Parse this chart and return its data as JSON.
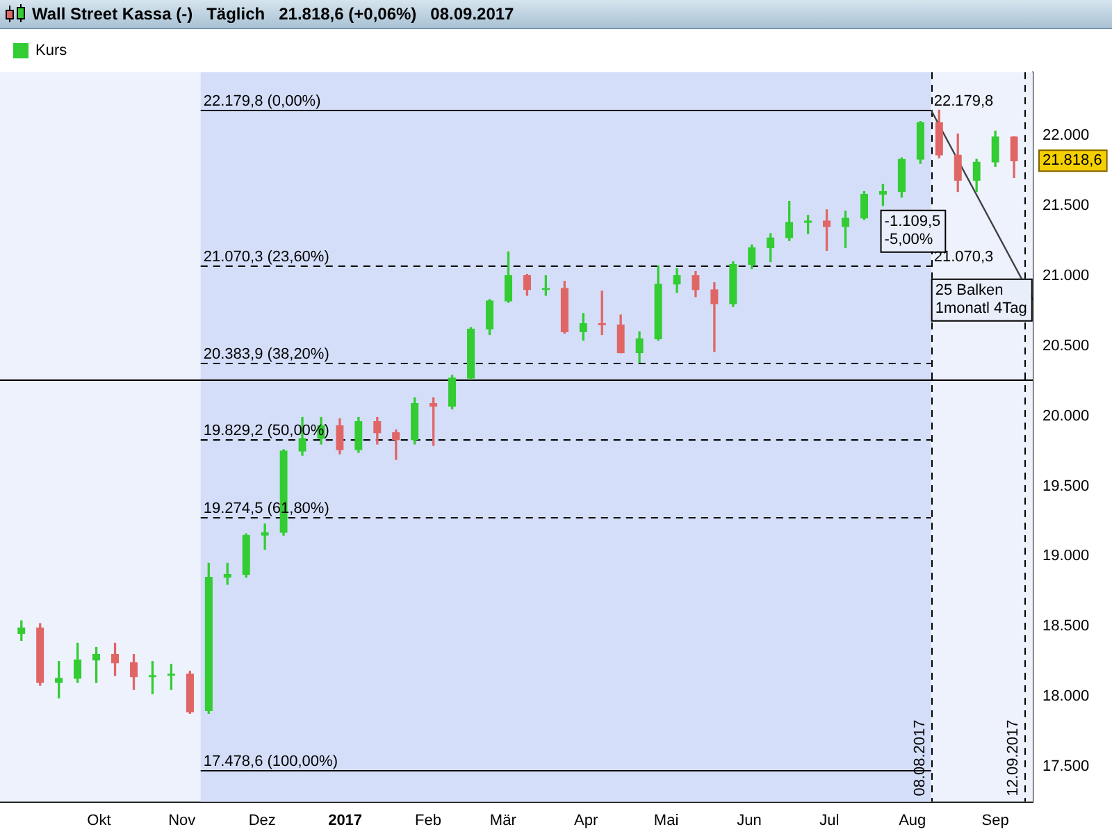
{
  "chart_data": {
    "type": "candlestick",
    "title": "Wall Street Kassa (-)   Täglich   21.818,6 (+0,06%)   08.09.2017",
    "legend": "top left",
    "xlim": [
      "2016-08-25",
      "2017-09-15"
    ],
    "xticks": [
      {
        "value": "2016-10-01",
        "label": "Okt"
      },
      {
        "value": "2016-11-01",
        "label": "Nov"
      },
      {
        "value": "2016-12-01",
        "label": "Dez"
      },
      {
        "value": "2017-01-01",
        "label": "2017"
      },
      {
        "value": "2017-02-01",
        "label": "Feb"
      },
      {
        "value": "2017-03-01",
        "label": "Mär"
      },
      {
        "value": "2017-04-01",
        "label": "Apr"
      },
      {
        "value": "2017-05-01",
        "label": "Mai"
      },
      {
        "value": "2017-06-01",
        "label": "Jun"
      },
      {
        "value": "2017-07-01",
        "label": "Jul"
      },
      {
        "value": "2017-08-01",
        "label": "Aug"
      },
      {
        "value": "2017-09-01",
        "label": "Sep"
      }
    ],
    "ylim": [
      17250,
      22450
    ],
    "yticks": [
      {
        "value": 17500,
        "label": "17.500"
      },
      {
        "value": 18000,
        "label": "18.000"
      },
      {
        "value": 18500,
        "label": "18.500"
      },
      {
        "value": 19000,
        "label": "19.000"
      },
      {
        "value": 19500,
        "label": "19.500"
      },
      {
        "value": 20000,
        "label": "20.000"
      },
      {
        "value": 20500,
        "label": "20.500"
      },
      {
        "value": 21000,
        "label": "21.000"
      },
      {
        "value": 21500,
        "label": "21.500"
      },
      {
        "value": 22000,
        "label": "22.000"
      }
    ],
    "series": [
      {
        "name": "Kurs",
        "x": [
          "2016-09-02",
          "2016-09-09",
          "2016-09-16",
          "2016-09-23",
          "2016-09-30",
          "2016-10-07",
          "2016-10-14",
          "2016-10-21",
          "2016-10-28",
          "2016-11-04",
          "2016-11-11",
          "2016-11-18",
          "2016-11-25",
          "2016-12-02",
          "2016-12-09",
          "2016-12-16",
          "2016-12-23",
          "2016-12-30",
          "2017-01-06",
          "2017-01-13",
          "2017-01-20",
          "2017-01-27",
          "2017-02-03",
          "2017-02-10",
          "2017-02-17",
          "2017-02-24",
          "2017-03-03",
          "2017-03-10",
          "2017-03-17",
          "2017-03-24",
          "2017-03-31",
          "2017-04-07",
          "2017-04-14",
          "2017-04-21",
          "2017-04-28",
          "2017-05-05",
          "2017-05-12",
          "2017-05-19",
          "2017-05-26",
          "2017-06-02",
          "2017-06-09",
          "2017-06-16",
          "2017-06-23",
          "2017-06-30",
          "2017-07-07",
          "2017-07-14",
          "2017-07-21",
          "2017-07-28",
          "2017-08-04",
          "2017-08-11",
          "2017-08-18",
          "2017-08-25",
          "2017-09-01",
          "2017-09-08"
        ],
        "ohlc": [
          [
            18450,
            18540,
            18400,
            18490
          ],
          [
            18490,
            18520,
            18080,
            18100
          ],
          [
            18100,
            18250,
            17990,
            18130
          ],
          [
            18130,
            18380,
            18100,
            18260
          ],
          [
            18260,
            18350,
            18100,
            18300
          ],
          [
            18300,
            18380,
            18150,
            18240
          ],
          [
            18240,
            18300,
            18050,
            18140
          ],
          [
            18140,
            18250,
            18020,
            18150
          ],
          [
            18150,
            18230,
            18050,
            18160
          ],
          [
            18160,
            18180,
            17880,
            17890
          ],
          [
            17900,
            18950,
            17880,
            18850
          ],
          [
            18850,
            18950,
            18800,
            18870
          ],
          [
            18870,
            19160,
            18850,
            19150
          ],
          [
            19150,
            19230,
            19050,
            19170
          ],
          [
            19170,
            19760,
            19150,
            19750
          ],
          [
            19750,
            19990,
            19720,
            19840
          ],
          [
            19840,
            19990,
            19800,
            19930
          ],
          [
            19930,
            19980,
            19730,
            19760
          ],
          [
            19760,
            19990,
            19740,
            19960
          ],
          [
            19960,
            19990,
            19800,
            19880
          ],
          [
            19880,
            19900,
            19690,
            19830
          ],
          [
            19830,
            20130,
            19800,
            20090
          ],
          [
            20090,
            20130,
            19790,
            20070
          ],
          [
            20070,
            20290,
            20050,
            20270
          ],
          [
            20270,
            20630,
            20260,
            20620
          ],
          [
            20620,
            20830,
            20580,
            20820
          ],
          [
            20820,
            21170,
            20810,
            21000
          ],
          [
            21000,
            21010,
            20860,
            20900
          ],
          [
            20900,
            21000,
            20860,
            20910
          ],
          [
            20910,
            20960,
            20590,
            20600
          ],
          [
            20600,
            20730,
            20540,
            20660
          ],
          [
            20660,
            20890,
            20580,
            20650
          ],
          [
            20650,
            20720,
            20450,
            20450
          ],
          [
            20450,
            20600,
            20380,
            20550
          ],
          [
            20550,
            21070,
            20540,
            20940
          ],
          [
            20940,
            21050,
            20880,
            21000
          ],
          [
            21000,
            21030,
            20850,
            20900
          ],
          [
            20900,
            20950,
            20460,
            20800
          ],
          [
            20800,
            21100,
            20780,
            21080
          ],
          [
            21080,
            21220,
            21050,
            21200
          ],
          [
            21200,
            21300,
            21100,
            21270
          ],
          [
            21270,
            21530,
            21250,
            21380
          ],
          [
            21380,
            21430,
            21300,
            21390
          ],
          [
            21390,
            21470,
            21180,
            21350
          ],
          [
            21350,
            21460,
            21200,
            21410
          ],
          [
            21410,
            21600,
            21400,
            21580
          ],
          [
            21580,
            21650,
            21500,
            21600
          ],
          [
            21600,
            21840,
            21560,
            21830
          ],
          [
            21830,
            22100,
            21800,
            22090
          ],
          [
            22090,
            22180,
            21840,
            21860
          ],
          [
            21860,
            22010,
            21600,
            21680
          ],
          [
            21680,
            21830,
            21600,
            21810
          ],
          [
            21810,
            22030,
            21780,
            21990
          ],
          [
            21990,
            21990,
            21700,
            21819
          ]
        ],
        "colors": [
          "#33cc33",
          "#e06666",
          "#33cc33",
          "#33cc33",
          "#33cc33",
          "#e06666",
          "#e06666",
          "#33cc33",
          "#33cc33",
          "#e06666",
          "#33cc33",
          "#33cc33",
          "#33cc33",
          "#33cc33",
          "#33cc33",
          "#33cc33",
          "#33cc33",
          "#e06666",
          "#33cc33",
          "#e06666",
          "#e06666",
          "#33cc33",
          "#e06666",
          "#33cc33",
          "#33cc33",
          "#33cc33",
          "#33cc33",
          "#e06666",
          "#33cc33",
          "#e06666",
          "#33cc33",
          "#e06666",
          "#e06666",
          "#33cc33",
          "#33cc33",
          "#33cc33",
          "#e06666",
          "#e06666",
          "#33cc33",
          "#33cc33",
          "#33cc33",
          "#33cc33",
          "#33cc33",
          "#e06666",
          "#33cc33",
          "#33cc33",
          "#33cc33",
          "#33cc33",
          "#33cc33",
          "#e06666",
          "#e06666",
          "#33cc33",
          "#33cc33",
          "#e06666"
        ]
      },
      {
        "type": "line",
        "x": [
          "2017-08-08",
          "2017-09-15"
        ],
        "values": [
          22180,
          20830
        ],
        "color": "#404040"
      }
    ],
    "bands": [
      {
        "axis": "x",
        "from": "2016-11-08",
        "to": "2017-08-08",
        "color": "#d4def8"
      }
    ],
    "ref_lines": [
      {
        "axis": "y",
        "value": 22179.8,
        "label": "22.179,8 (0,00%)",
        "line_style": "solid",
        "color": "#000000"
      },
      {
        "axis": "y",
        "value": 21070.3,
        "label": "21.070,3 (23,60%)",
        "line_style": "dashed",
        "color": "#000000"
      },
      {
        "axis": "y",
        "value": 20383.9,
        "label": "20.383,9 (38,20%)",
        "line_style": "dashed",
        "color": "#000000"
      },
      {
        "axis": "y",
        "value": 19829.2,
        "label": "19.829,2 (50,00%)",
        "line_style": "dashed",
        "color": "#000000"
      },
      {
        "axis": "y",
        "value": 19274.5,
        "label": "19.274,5 (61,80%)",
        "line_style": "dashed",
        "color": "#000000"
      },
      {
        "axis": "y",
        "value": 17478.6,
        "label": "17.478,6 (100,00%)",
        "line_style": "solid",
        "color": "#000000"
      },
      {
        "axis": "y",
        "value": 20264,
        "line_style": "solid",
        "color": "#000000"
      },
      {
        "axis": "x",
        "value": "2017-08-08",
        "label": "08.08.2017",
        "line_style": "dashed",
        "color": "#000000"
      },
      {
        "axis": "x",
        "value": "2017-09-12",
        "label": "12.09.2017",
        "line_style": "dashed",
        "color": "#000000"
      }
    ],
    "annotations": [
      {
        "text": "22.179,8",
        "x": "2017-08-08",
        "y": 22179.8
      },
      {
        "text": "21.070,3",
        "x": "2017-08-08",
        "y": 21070.3
      },
      {
        "text": "-1.109,5\n-5,00%",
        "x": "2017-07-20",
        "y": 21470
      },
      {
        "text": "25 Balken\n1monatl 4Tag",
        "x": "2017-08-08",
        "y": 20980
      },
      "21.818,6"
    ]
  }
}
